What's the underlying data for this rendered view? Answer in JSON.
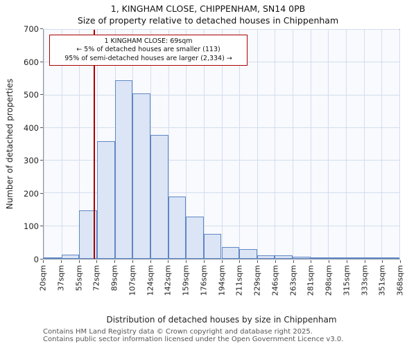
{
  "title": "1, KINGHAM CLOSE, CHIPPENHAM, SN14 0PB",
  "subtitle": "Size of property relative to detached houses in Chippenham",
  "annotation": {
    "line1": "1 KINGHAM CLOSE: 69sqm",
    "line2": "← 5% of detached houses are smaller (113)",
    "line3": "95% of semi-detached houses are larger (2,334) →"
  },
  "chart_data": {
    "type": "bar",
    "title": "Size of property relative to detached houses in Chippenham",
    "xlabel": "Distribution of detached houses by size in Chippenham",
    "ylabel": "Number of detached properties",
    "ylim": [
      0,
      700
    ],
    "yticks": [
      0,
      100,
      200,
      300,
      400,
      500,
      600,
      700
    ],
    "grid": true,
    "bin_edges_labels": [
      "20sqm",
      "37sqm",
      "55sqm",
      "72sqm",
      "89sqm",
      "107sqm",
      "124sqm",
      "142sqm",
      "159sqm",
      "176sqm",
      "194sqm",
      "211sqm",
      "229sqm",
      "246sqm",
      "263sqm",
      "281sqm",
      "298sqm",
      "315sqm",
      "333sqm",
      "351sqm",
      "368sqm"
    ],
    "values": [
      3,
      12,
      148,
      360,
      545,
      505,
      378,
      190,
      130,
      77,
      37,
      30,
      10,
      10,
      7,
      3,
      2,
      2,
      2,
      2
    ],
    "marker_value_sqm": 69,
    "bar_fill": "#dbe5f6",
    "bar_border": "#5f86c4",
    "marker_color": "#aa0000"
  },
  "footer": {
    "line1": "Contains HM Land Registry data © Crown copyright and database right 2025.",
    "line2": "Contains public sector information licensed under the Open Government Licence v3.0."
  }
}
